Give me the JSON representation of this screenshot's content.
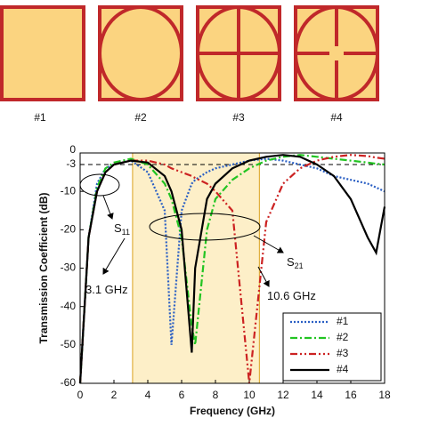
{
  "antennas": [
    {
      "label": "#1"
    },
    {
      "label": "#2"
    },
    {
      "label": "#3"
    },
    {
      "label": "#4"
    }
  ],
  "chart_data": {
    "type": "line",
    "xlabel": "Frequency (GHz)",
    "ylabel": "Transmission Coefficient (dB)",
    "x": [
      0,
      0.5,
      1,
      1.5,
      2,
      3,
      4,
      5,
      5.4,
      6,
      6.6,
      6.8,
      7.5,
      8,
      9,
      10,
      11,
      12,
      13,
      14,
      15,
      16,
      17,
      17.5,
      18
    ],
    "xlim": [
      0,
      18
    ],
    "xticks": [
      0,
      2,
      4,
      6,
      8,
      10,
      12,
      14,
      16,
      18
    ],
    "ylim": [
      -60,
      0
    ],
    "yticks": [
      0,
      -3,
      -10,
      -20,
      -30,
      -40,
      -50,
      -60
    ],
    "hline": -3,
    "shaded_band": [
      3.1,
      10.6
    ],
    "legend": "lower right",
    "series": [
      {
        "name": "#1",
        "color": "#2a5fc4",
        "dash": "2,2",
        "values": [
          -60,
          -22,
          -8,
          -4,
          -3,
          -2,
          -5,
          -15,
          -50,
          -15,
          -8,
          -7,
          -5,
          -4,
          -3,
          -2,
          -1.5,
          -2,
          -3,
          -4,
          -6,
          -7,
          -8,
          -9,
          -10
        ]
      },
      {
        "name": "#2",
        "color": "#22c422",
        "dash": "8,3,2,3",
        "values": [
          -60,
          -22,
          -9,
          -4,
          -2.5,
          -1.5,
          -3,
          -8,
          -12,
          -22,
          -45,
          -50,
          -20,
          -12,
          -7,
          -4,
          -2,
          -1,
          -0.5,
          -1,
          -1.5,
          -2,
          -2.5,
          -2.8,
          -3
        ]
      },
      {
        "name": "#3",
        "color": "#cc2222",
        "dash": "8,3,2,3,2,3",
        "values": [
          -60,
          -22,
          -10,
          -5,
          -3,
          -2,
          -2,
          -3,
          -4,
          -5,
          -6,
          -6.5,
          -8,
          -10,
          -15,
          -60,
          -18,
          -8,
          -4,
          -2,
          -1,
          -0.5,
          -0.8,
          -1.2,
          -1.5
        ]
      },
      {
        "name": "#4",
        "color": "#000000",
        "dash": "",
        "values": [
          -60,
          -22,
          -10,
          -5,
          -3,
          -2,
          -2.5,
          -6,
          -10,
          -20,
          -52,
          -30,
          -12,
          -8,
          -4,
          -2,
          -1,
          -0.5,
          -1,
          -3,
          -6,
          -12,
          -22,
          -26,
          -14
        ]
      }
    ],
    "annotations": [
      {
        "text": "S",
        "sub": "11"
      },
      {
        "text": "S",
        "sub": "21"
      },
      {
        "text": "3.1 GHz"
      },
      {
        "text": "10.6 GHz"
      }
    ]
  }
}
